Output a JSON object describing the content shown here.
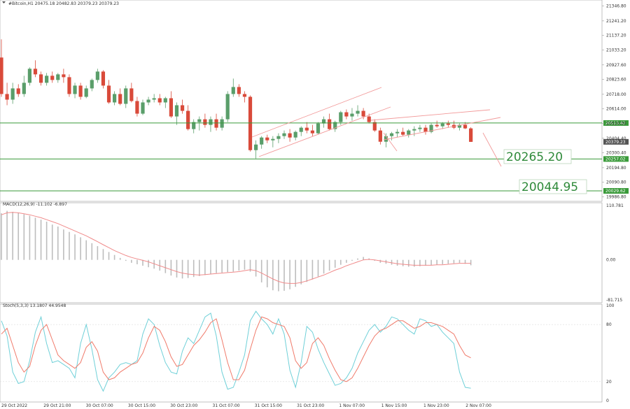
{
  "header": {
    "main_title": "#Bitcoin,H1  20475.18 20482.83 20379.23 20379.23",
    "macd_title": "MACD(12,26,9) -11.102 -6.897",
    "stoch_title": "Stoch(5,3,3) 13.1807 44.9548"
  },
  "colors": {
    "bull": "#5a9e6a",
    "bear": "#d94a3a",
    "level": "#3a9a3a",
    "channel": "#f29a9a",
    "macd_hist": "#bdbdbd",
    "macd_signal": "#f08a8a",
    "stoch_main": "#6fd0d8",
    "stoch_signal": "#f07a6a"
  },
  "chart_data": [
    {
      "type": "candlestick",
      "symbol": "#Bitcoin",
      "timeframe": "H1",
      "ohlc_last": [
        20475.18,
        20482.83,
        20379.23,
        20379.23
      ],
      "y_ticks": [
        21346.8,
        21241.2,
        21137.2,
        21033.2,
        20927.6,
        20823.6,
        20718.0,
        20614.0,
        20510.0,
        20404.4,
        20300.4,
        20194.8,
        20090.8,
        19986.8
      ],
      "ylim": [
        19955,
        21390
      ],
      "price_tags": [
        {
          "label": "20513.42",
          "value": 20513.42,
          "color": "#3a9a3a"
        },
        {
          "label": "20379.23",
          "value": 20379.23,
          "color": "#555555"
        },
        {
          "label": "20257.02",
          "value": 20257.02,
          "color": "#3a9a3a"
        },
        {
          "label": "20029.62",
          "value": 20029.62,
          "color": "#3a9a3a"
        }
      ],
      "levels": [
        20513.42,
        20257.02,
        20029.62
      ],
      "targets": [
        {
          "label": "20265.20",
          "value": 20265.2
        },
        {
          "label": "20044.95",
          "value": 20044.95
        }
      ],
      "x_labels": [
        "29 Oct 2022",
        "29 Oct 21:00",
        "30 Oct 07:00",
        "30 Oct 15:00",
        "30 Oct 23:00",
        "31 Oct 07:00",
        "31 Oct 15:00",
        "31 Oct 23:00",
        "1 Nov 07:00",
        "1 Nov 15:00",
        "1 Nov 23:00",
        "2 Nov 07:00"
      ],
      "candles": [
        [
          20980,
          21110,
          20700,
          20720
        ],
        [
          20720,
          20800,
          20640,
          20680
        ],
        [
          20680,
          20800,
          20650,
          20760
        ],
        [
          20760,
          20790,
          20700,
          20720
        ],
        [
          20720,
          20850,
          20700,
          20800
        ],
        [
          20800,
          20910,
          20780,
          20900
        ],
        [
          20900,
          20960,
          20840,
          20860
        ],
        [
          20860,
          20880,
          20780,
          20800
        ],
        [
          20800,
          20870,
          20780,
          20850
        ],
        [
          20850,
          20880,
          20800,
          20820
        ],
        [
          20820,
          20870,
          20800,
          20860
        ],
        [
          20860,
          20900,
          20800,
          20840
        ],
        [
          20840,
          20860,
          20700,
          20720
        ],
        [
          20720,
          20800,
          20690,
          20780
        ],
        [
          20780,
          20800,
          20680,
          20700
        ],
        [
          20700,
          20780,
          20690,
          20760
        ],
        [
          20760,
          20830,
          20740,
          20820
        ],
        [
          20820,
          20900,
          20800,
          20880
        ],
        [
          20880,
          20890,
          20760,
          20780
        ],
        [
          20780,
          20820,
          20650,
          20660
        ],
        [
          20660,
          20740,
          20640,
          20720
        ],
        [
          20720,
          20760,
          20640,
          20650
        ],
        [
          20650,
          20780,
          20620,
          20760
        ],
        [
          20760,
          20800,
          20660,
          20670
        ],
        [
          20670,
          20700,
          20560,
          20580
        ],
        [
          20580,
          20680,
          20570,
          20660
        ],
        [
          20660,
          20700,
          20640,
          20680
        ],
        [
          20680,
          20720,
          20660,
          20690
        ],
        [
          20690,
          20720,
          20640,
          20660
        ],
        [
          20660,
          20700,
          20620,
          20690
        ],
        [
          20690,
          20740,
          20550,
          20560
        ],
        [
          20560,
          20660,
          20500,
          20640
        ],
        [
          20640,
          20680,
          20580,
          20600
        ],
        [
          20600,
          20640,
          20460,
          20470
        ],
        [
          20470,
          20540,
          20440,
          20520
        ],
        [
          20520,
          20560,
          20460,
          20540
        ],
        [
          20540,
          20580,
          20480,
          20500
        ],
        [
          20500,
          20560,
          20450,
          20540
        ],
        [
          20540,
          20580,
          20460,
          20480
        ],
        [
          20480,
          20560,
          20460,
          20540
        ],
        [
          20540,
          20740,
          20520,
          20720
        ],
        [
          20720,
          20830,
          20700,
          20770
        ],
        [
          20770,
          20790,
          20700,
          20720
        ],
        [
          20720,
          20740,
          20660,
          20700
        ],
        [
          20700,
          20710,
          20310,
          20320
        ],
        [
          20320,
          20390,
          20260,
          20360
        ],
        [
          20360,
          20420,
          20330,
          20410
        ],
        [
          20410,
          20430,
          20370,
          20390
        ],
        [
          20390,
          20420,
          20340,
          20400
        ],
        [
          20400,
          20440,
          20370,
          20420
        ],
        [
          20420,
          20460,
          20400,
          20440
        ],
        [
          20440,
          20470,
          20380,
          20410
        ],
        [
          20410,
          20460,
          20390,
          20450
        ],
        [
          20450,
          20490,
          20420,
          20480
        ],
        [
          20480,
          20520,
          20440,
          20460
        ],
        [
          20460,
          20500,
          20420,
          20440
        ],
        [
          20440,
          20520,
          20430,
          20510
        ],
        [
          20510,
          20560,
          20480,
          20540
        ],
        [
          20540,
          20580,
          20460,
          20470
        ],
        [
          20470,
          20530,
          20450,
          20520
        ],
        [
          20520,
          20600,
          20500,
          20590
        ],
        [
          20590,
          20610,
          20540,
          20560
        ],
        [
          20560,
          20620,
          20530,
          20580
        ],
        [
          20580,
          20640,
          20560,
          20600
        ],
        [
          20600,
          20620,
          20540,
          20560
        ],
        [
          20560,
          20580,
          20510,
          20520
        ],
        [
          20520,
          20540,
          20450,
          20460
        ],
        [
          20460,
          20480,
          20360,
          20380
        ],
        [
          20380,
          20440,
          20340,
          20420
        ],
        [
          20420,
          20450,
          20390,
          20440
        ],
        [
          20440,
          20470,
          20410,
          20450
        ],
        [
          20450,
          20480,
          20420,
          20430
        ],
        [
          20430,
          20470,
          20410,
          20460
        ],
        [
          20460,
          20490,
          20420,
          20470
        ],
        [
          20470,
          20500,
          20450,
          20480
        ],
        [
          20480,
          20500,
          20430,
          20450
        ],
        [
          20450,
          20510,
          20440,
          20500
        ],
        [
          20500,
          20530,
          20480,
          20490
        ],
        [
          20490,
          20520,
          20470,
          20510
        ],
        [
          20510,
          20530,
          20480,
          20500
        ],
        [
          20500,
          20530,
          20470,
          20480
        ],
        [
          20480,
          20510,
          20460,
          20500
        ],
        [
          20500,
          20520,
          20470,
          20475
        ],
        [
          20475,
          20483,
          20379,
          20379
        ]
      ]
    },
    {
      "type": "bar",
      "name": "MACD(12,26,9)",
      "y_ticks": [
        110.781,
        0.0,
        -81.715
      ],
      "ylim": [
        -81.715,
        110.781
      ],
      "histogram": [
        95,
        100,
        98,
        96,
        93,
        90,
        86,
        82,
        78,
        72,
        68,
        62,
        57,
        52,
        46,
        40,
        34,
        28,
        22,
        16,
        10,
        4,
        -2,
        -6,
        -9,
        -12,
        -15,
        -18,
        -22,
        -27,
        -32,
        -36,
        -38,
        -37,
        -35,
        -33,
        -31,
        -29,
        -27,
        -26,
        -25,
        -24,
        -22,
        -20,
        -24,
        -34,
        -46,
        -56,
        -62,
        -64,
        -63,
        -60,
        -55,
        -50,
        -45,
        -40,
        -34,
        -28,
        -22,
        -16,
        -10,
        -6,
        -2,
        3,
        6,
        3,
        -2,
        -6,
        -8,
        -10,
        -12,
        -13,
        -14,
        -14,
        -13,
        -12,
        -11,
        -10,
        -9,
        -8,
        -7,
        -6,
        -8,
        -11
      ],
      "signal": [
        92,
        96,
        97,
        96,
        94,
        92,
        89,
        86,
        82,
        78,
        74,
        69,
        64,
        59,
        54,
        49,
        43,
        37,
        31,
        25,
        19,
        14,
        9,
        5,
        2,
        -1,
        -4,
        -8,
        -12,
        -16,
        -20,
        -24,
        -27,
        -29,
        -30,
        -31,
        -30,
        -29,
        -28,
        -27,
        -26,
        -25,
        -24,
        -22,
        -20,
        -22,
        -27,
        -33,
        -39,
        -44,
        -47,
        -48,
        -48,
        -46,
        -43,
        -39,
        -35,
        -31,
        -26,
        -21,
        -17,
        -12,
        -8,
        -4,
        0,
        1,
        0,
        -2,
        -4,
        -6,
        -8,
        -9,
        -10,
        -11,
        -11,
        -11,
        -11,
        -10,
        -10,
        -9,
        -8,
        -7,
        -7,
        -7
      ]
    },
    {
      "type": "line",
      "name": "Stoch(5,3,3)",
      "y_ticks": [
        100,
        80,
        20,
        0
      ],
      "ylim": [
        0,
        100
      ],
      "series": [
        {
          "name": "main",
          "values": [
            84,
            68,
            30,
            18,
            20,
            42,
            72,
            88,
            60,
            40,
            42,
            38,
            34,
            24,
            60,
            80,
            54,
            22,
            10,
            24,
            30,
            38,
            40,
            38,
            42,
            70,
            86,
            80,
            58,
            40,
            30,
            28,
            52,
            66,
            60,
            74,
            88,
            92,
            68,
            30,
            12,
            14,
            30,
            48,
            84,
            94,
            86,
            80,
            70,
            86,
            70,
            32,
            14,
            40,
            78,
            72,
            54,
            40,
            28,
            16,
            18,
            24,
            34,
            50,
            62,
            74,
            80,
            72,
            78,
            88,
            86,
            80,
            74,
            70,
            86,
            84,
            78,
            80,
            72,
            66,
            60,
            30,
            14,
            13
          ]
        },
        {
          "name": "signal",
          "values": [
            70,
            76,
            58,
            40,
            30,
            36,
            58,
            74,
            80,
            64,
            48,
            42,
            38,
            34,
            40,
            56,
            62,
            52,
            30,
            22,
            24,
            30,
            34,
            38,
            40,
            50,
            66,
            78,
            74,
            62,
            46,
            36,
            38,
            48,
            58,
            64,
            72,
            82,
            86,
            64,
            40,
            22,
            22,
            32,
            54,
            74,
            88,
            86,
            82,
            80,
            78,
            66,
            42,
            34,
            40,
            60,
            66,
            58,
            44,
            32,
            22,
            20,
            24,
            34,
            46,
            58,
            68,
            74,
            76,
            80,
            84,
            84,
            80,
            76,
            78,
            82,
            82,
            80,
            78,
            74,
            70,
            58,
            48,
            45
          ]
        }
      ]
    }
  ]
}
